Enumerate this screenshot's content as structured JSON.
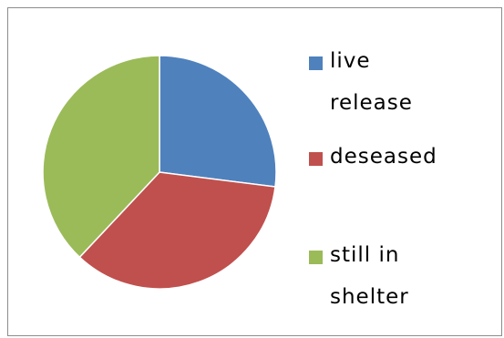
{
  "chart_data": {
    "type": "pie",
    "title": "",
    "start_angle_deg": 0,
    "direction": "clockwise",
    "slices": [
      {
        "label": "live\nrelease",
        "value": 27,
        "color": "#4f81bd"
      },
      {
        "label": "deseased",
        "value": 35,
        "color": "#c0504d"
      },
      {
        "label": "still in\nshelter",
        "value": 38,
        "color": "#9bbb59"
      }
    ],
    "legend_placement": "right"
  }
}
